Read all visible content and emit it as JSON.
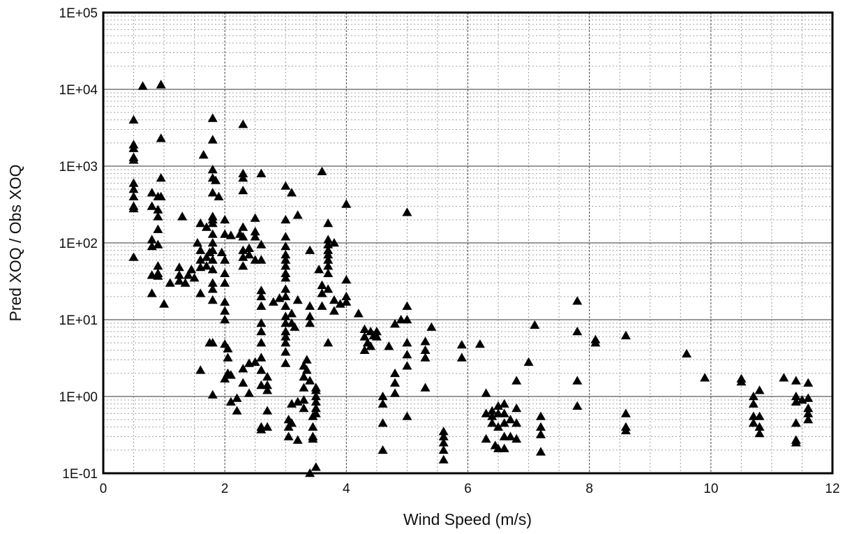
{
  "chart_data": {
    "type": "scatter",
    "title": "",
    "xlabel": "Wind Speed (m/s)",
    "ylabel": "Pred XOQ / Obs XOQ",
    "xlim": [
      0,
      12
    ],
    "ylim": [
      0.1,
      100000
    ],
    "y_scale": "log",
    "x_ticks": [
      0,
      2,
      4,
      6,
      8,
      10,
      12
    ],
    "x_tick_labels": [
      "0",
      "2",
      "4",
      "6",
      "8",
      "10",
      "12"
    ],
    "y_ticks": [
      0.1,
      1,
      10,
      100,
      1000,
      10000,
      100000
    ],
    "y_tick_labels": [
      "1E-01",
      "1E+00",
      "1E+01",
      "1E+02",
      "1E+03",
      "1E+04",
      "1E+05"
    ],
    "grid": true,
    "legend": "none",
    "marker": "triangle",
    "marker_color": "#000000",
    "points": [
      [
        0.5,
        4000
      ],
      [
        0.5,
        1900
      ],
      [
        0.5,
        1700
      ],
      [
        0.5,
        1300
      ],
      [
        0.5,
        1200
      ],
      [
        0.5,
        600
      ],
      [
        0.5,
        500
      ],
      [
        0.5,
        400
      ],
      [
        0.5,
        300
      ],
      [
        0.5,
        280
      ],
      [
        0.5,
        65
      ],
      [
        0.65,
        11000
      ],
      [
        0.95,
        11500
      ],
      [
        0.95,
        2300
      ],
      [
        0.95,
        700
      ],
      [
        0.95,
        400
      ],
      [
        0.8,
        450
      ],
      [
        0.8,
        300
      ],
      [
        0.8,
        110
      ],
      [
        0.8,
        90
      ],
      [
        0.8,
        38
      ],
      [
        0.8,
        22
      ],
      [
        0.9,
        400
      ],
      [
        0.9,
        270
      ],
      [
        0.9,
        220
      ],
      [
        0.9,
        150
      ],
      [
        0.9,
        95
      ],
      [
        0.9,
        50
      ],
      [
        0.9,
        40
      ],
      [
        0.9,
        37
      ],
      [
        1.0,
        16
      ],
      [
        1.1,
        30
      ],
      [
        1.25,
        48
      ],
      [
        1.25,
        38
      ],
      [
        1.25,
        32
      ],
      [
        1.3,
        220
      ],
      [
        1.35,
        30
      ],
      [
        1.4,
        38
      ],
      [
        1.45,
        45
      ],
      [
        1.5,
        35
      ],
      [
        1.55,
        100
      ],
      [
        1.6,
        180
      ],
      [
        1.6,
        80
      ],
      [
        1.6,
        60
      ],
      [
        1.6,
        48
      ],
      [
        1.6,
        22
      ],
      [
        1.6,
        2.2
      ],
      [
        1.65,
        1400
      ],
      [
        1.7,
        160
      ],
      [
        1.7,
        65
      ],
      [
        1.7,
        50
      ],
      [
        1.75,
        75
      ],
      [
        1.75,
        5
      ],
      [
        1.8,
        4200
      ],
      [
        1.8,
        2200
      ],
      [
        1.8,
        900
      ],
      [
        1.8,
        700
      ],
      [
        1.8,
        450
      ],
      [
        1.8,
        220
      ],
      [
        1.8,
        200
      ],
      [
        1.8,
        180
      ],
      [
        1.8,
        130
      ],
      [
        1.8,
        100
      ],
      [
        1.8,
        80
      ],
      [
        1.8,
        60
      ],
      [
        1.8,
        45
      ],
      [
        1.8,
        30
      ],
      [
        1.8,
        25
      ],
      [
        1.8,
        18
      ],
      [
        1.8,
        5
      ],
      [
        1.8,
        1.05
      ],
      [
        1.85,
        650
      ],
      [
        1.9,
        400
      ],
      [
        1.95,
        75
      ],
      [
        2.0,
        200
      ],
      [
        2.0,
        130
      ],
      [
        2.0,
        60
      ],
      [
        2.0,
        40
      ],
      [
        2.0,
        30
      ],
      [
        2.0,
        17
      ],
      [
        2.0,
        13
      ],
      [
        2.0,
        10
      ],
      [
        2.0,
        4.8
      ],
      [
        2.05,
        4.2
      ],
      [
        2.05,
        3.2
      ],
      [
        2.05,
        2.0
      ],
      [
        2.0,
        1.7
      ],
      [
        2.1,
        125
      ],
      [
        2.1,
        1.9
      ],
      [
        2.1,
        0.85
      ],
      [
        2.2,
        0.95
      ],
      [
        2.2,
        0.65
      ],
      [
        2.25,
        130
      ],
      [
        2.3,
        3500
      ],
      [
        2.3,
        800
      ],
      [
        2.3,
        700
      ],
      [
        2.3,
        480
      ],
      [
        2.3,
        160
      ],
      [
        2.3,
        120
      ],
      [
        2.3,
        80
      ],
      [
        2.3,
        65
      ],
      [
        2.3,
        50
      ],
      [
        2.3,
        2.3
      ],
      [
        2.3,
        1.5
      ],
      [
        2.4,
        85
      ],
      [
        2.4,
        70
      ],
      [
        2.4,
        2.7
      ],
      [
        2.4,
        1.1
      ],
      [
        2.5,
        210
      ],
      [
        2.5,
        140
      ],
      [
        2.5,
        120
      ],
      [
        2.5,
        60
      ],
      [
        2.5,
        2.8
      ],
      [
        2.6,
        800
      ],
      [
        2.6,
        95
      ],
      [
        2.6,
        60
      ],
      [
        2.6,
        24
      ],
      [
        2.6,
        20
      ],
      [
        2.6,
        15
      ],
      [
        2.6,
        9
      ],
      [
        2.6,
        7
      ],
      [
        2.6,
        5
      ],
      [
        2.6,
        3.2
      ],
      [
        2.6,
        2.2
      ],
      [
        2.6,
        1.4
      ],
      [
        2.6,
        0.4
      ],
      [
        2.6,
        0.37
      ],
      [
        2.7,
        1.8
      ],
      [
        2.7,
        1.4
      ],
      [
        2.7,
        1.2
      ],
      [
        2.7,
        0.65
      ],
      [
        2.7,
        0.4
      ],
      [
        2.8,
        17
      ],
      [
        2.9,
        19
      ],
      [
        3.0,
        550
      ],
      [
        3.0,
        200
      ],
      [
        3.0,
        120
      ],
      [
        3.0,
        90
      ],
      [
        3.0,
        70
      ],
      [
        3.0,
        60
      ],
      [
        3.0,
        50
      ],
      [
        3.0,
        40
      ],
      [
        3.0,
        35
      ],
      [
        3.0,
        25
      ],
      [
        3.0,
        20
      ],
      [
        3.0,
        15
      ],
      [
        3.0,
        11
      ],
      [
        3.0,
        9
      ],
      [
        3.0,
        7
      ],
      [
        3.0,
        6
      ],
      [
        3.0,
        5
      ],
      [
        3.0,
        3.8
      ],
      [
        3.0,
        2.7
      ],
      [
        3.05,
        0.5
      ],
      [
        3.05,
        0.4
      ],
      [
        3.05,
        0.3
      ],
      [
        3.1,
        450
      ],
      [
        3.1,
        12
      ],
      [
        3.1,
        9
      ],
      [
        3.1,
        0.8
      ],
      [
        3.1,
        0.45
      ],
      [
        3.15,
        8
      ],
      [
        3.2,
        230
      ],
      [
        3.2,
        18
      ],
      [
        3.2,
        0.85
      ],
      [
        3.2,
        0.27
      ],
      [
        3.3,
        2.5
      ],
      [
        3.3,
        1.8
      ],
      [
        3.3,
        1.3
      ],
      [
        3.3,
        0.9
      ],
      [
        3.3,
        0.7
      ],
      [
        3.35,
        3.0
      ],
      [
        3.35,
        2.2
      ],
      [
        3.4,
        0.1
      ],
      [
        3.4,
        80
      ],
      [
        3.4,
        15
      ],
      [
        3.4,
        11
      ],
      [
        3.4,
        9
      ],
      [
        3.4,
        1.6
      ],
      [
        3.45,
        0.55
      ],
      [
        3.45,
        0.4
      ],
      [
        3.45,
        0.3
      ],
      [
        3.5,
        0.12
      ],
      [
        3.5,
        1.3
      ],
      [
        3.5,
        1.2
      ],
      [
        3.5,
        1.0
      ],
      [
        3.5,
        0.85
      ],
      [
        3.5,
        0.7
      ],
      [
        3.5,
        0.6
      ],
      [
        3.45,
        0.28
      ],
      [
        3.55,
        45
      ],
      [
        3.6,
        850
      ],
      [
        3.6,
        28
      ],
      [
        3.6,
        22
      ],
      [
        3.6,
        15
      ],
      [
        3.7,
        180
      ],
      [
        3.7,
        110
      ],
      [
        3.7,
        95
      ],
      [
        3.7,
        80
      ],
      [
        3.7,
        70
      ],
      [
        3.7,
        60
      ],
      [
        3.7,
        50
      ],
      [
        3.7,
        40
      ],
      [
        3.7,
        25
      ],
      [
        3.7,
        5
      ],
      [
        3.8,
        100
      ],
      [
        3.8,
        13
      ],
      [
        3.8,
        18
      ],
      [
        3.9,
        16
      ],
      [
        4.0,
        320
      ],
      [
        4.0,
        33
      ],
      [
        4.0,
        17
      ],
      [
        4.0,
        20
      ],
      [
        4.2,
        12
      ],
      [
        4.3,
        7.5
      ],
      [
        4.3,
        6
      ],
      [
        4.3,
        4
      ],
      [
        4.35,
        5
      ],
      [
        4.4,
        7
      ],
      [
        4.4,
        4.5
      ],
      [
        4.45,
        6.2
      ],
      [
        4.5,
        7
      ],
      [
        4.5,
        6
      ],
      [
        4.6,
        1.0
      ],
      [
        4.6,
        0.8
      ],
      [
        4.6,
        0.45
      ],
      [
        4.6,
        0.2
      ],
      [
        4.7,
        4.5
      ],
      [
        4.8,
        8.8
      ],
      [
        4.8,
        2.0
      ],
      [
        4.8,
        1.5
      ],
      [
        4.8,
        1.1
      ],
      [
        4.9,
        10
      ],
      [
        5.0,
        250
      ],
      [
        5.0,
        15
      ],
      [
        5.0,
        10
      ],
      [
        5.0,
        5
      ],
      [
        5.0,
        3.5
      ],
      [
        5.0,
        2.5
      ],
      [
        5.0,
        0.55
      ],
      [
        5.3,
        5.2
      ],
      [
        5.3,
        4.0
      ],
      [
        5.3,
        3.2
      ],
      [
        5.3,
        1.3
      ],
      [
        5.4,
        8
      ],
      [
        5.6,
        0.35
      ],
      [
        5.6,
        0.3
      ],
      [
        5.6,
        0.25
      ],
      [
        5.6,
        0.2
      ],
      [
        5.6,
        0.15
      ],
      [
        5.9,
        4.7
      ],
      [
        5.9,
        3.2
      ],
      [
        6.2,
        4.8
      ],
      [
        6.3,
        1.1
      ],
      [
        6.3,
        0.6
      ],
      [
        6.3,
        0.28
      ],
      [
        6.4,
        0.65
      ],
      [
        6.4,
        0.55
      ],
      [
        6.4,
        0.45
      ],
      [
        6.45,
        0.23
      ],
      [
        6.5,
        0.75
      ],
      [
        6.5,
        0.6
      ],
      [
        6.5,
        0.4
      ],
      [
        6.5,
        0.21
      ],
      [
        6.6,
        0.8
      ],
      [
        6.6,
        0.6
      ],
      [
        6.6,
        0.45
      ],
      [
        6.6,
        0.3
      ],
      [
        6.6,
        0.21
      ],
      [
        6.7,
        0.5
      ],
      [
        6.7,
        0.3
      ],
      [
        6.8,
        1.6
      ],
      [
        6.8,
        0.7
      ],
      [
        6.8,
        0.45
      ],
      [
        6.8,
        0.28
      ],
      [
        7.0,
        2.8
      ],
      [
        7.1,
        8.5
      ],
      [
        7.2,
        0.55
      ],
      [
        7.2,
        0.4
      ],
      [
        7.2,
        0.32
      ],
      [
        7.2,
        0.19
      ],
      [
        7.8,
        17.5
      ],
      [
        7.8,
        7
      ],
      [
        7.8,
        1.6
      ],
      [
        7.8,
        0.75
      ],
      [
        8.1,
        5.5
      ],
      [
        8.1,
        5.0
      ],
      [
        8.6,
        6.2
      ],
      [
        8.6,
        0.6
      ],
      [
        8.6,
        0.4
      ],
      [
        8.6,
        0.36
      ],
      [
        9.6,
        3.6
      ],
      [
        9.9,
        1.75
      ],
      [
        10.5,
        1.7
      ],
      [
        10.5,
        1.55
      ],
      [
        10.7,
        1.0
      ],
      [
        10.7,
        0.8
      ],
      [
        10.7,
        0.55
      ],
      [
        10.7,
        0.45
      ],
      [
        10.8,
        1.2
      ],
      [
        10.8,
        0.55
      ],
      [
        10.8,
        0.4
      ],
      [
        10.8,
        0.33
      ],
      [
        11.2,
        1.75
      ],
      [
        11.4,
        1.6
      ],
      [
        11.4,
        1.0
      ],
      [
        11.4,
        0.85
      ],
      [
        11.4,
        0.45
      ],
      [
        11.4,
        0.27
      ],
      [
        11.4,
        0.25
      ],
      [
        11.5,
        0.9
      ],
      [
        11.6,
        1.5
      ],
      [
        11.6,
        0.95
      ],
      [
        11.6,
        0.7
      ],
      [
        11.6,
        0.6
      ],
      [
        11.6,
        0.5
      ]
    ]
  }
}
